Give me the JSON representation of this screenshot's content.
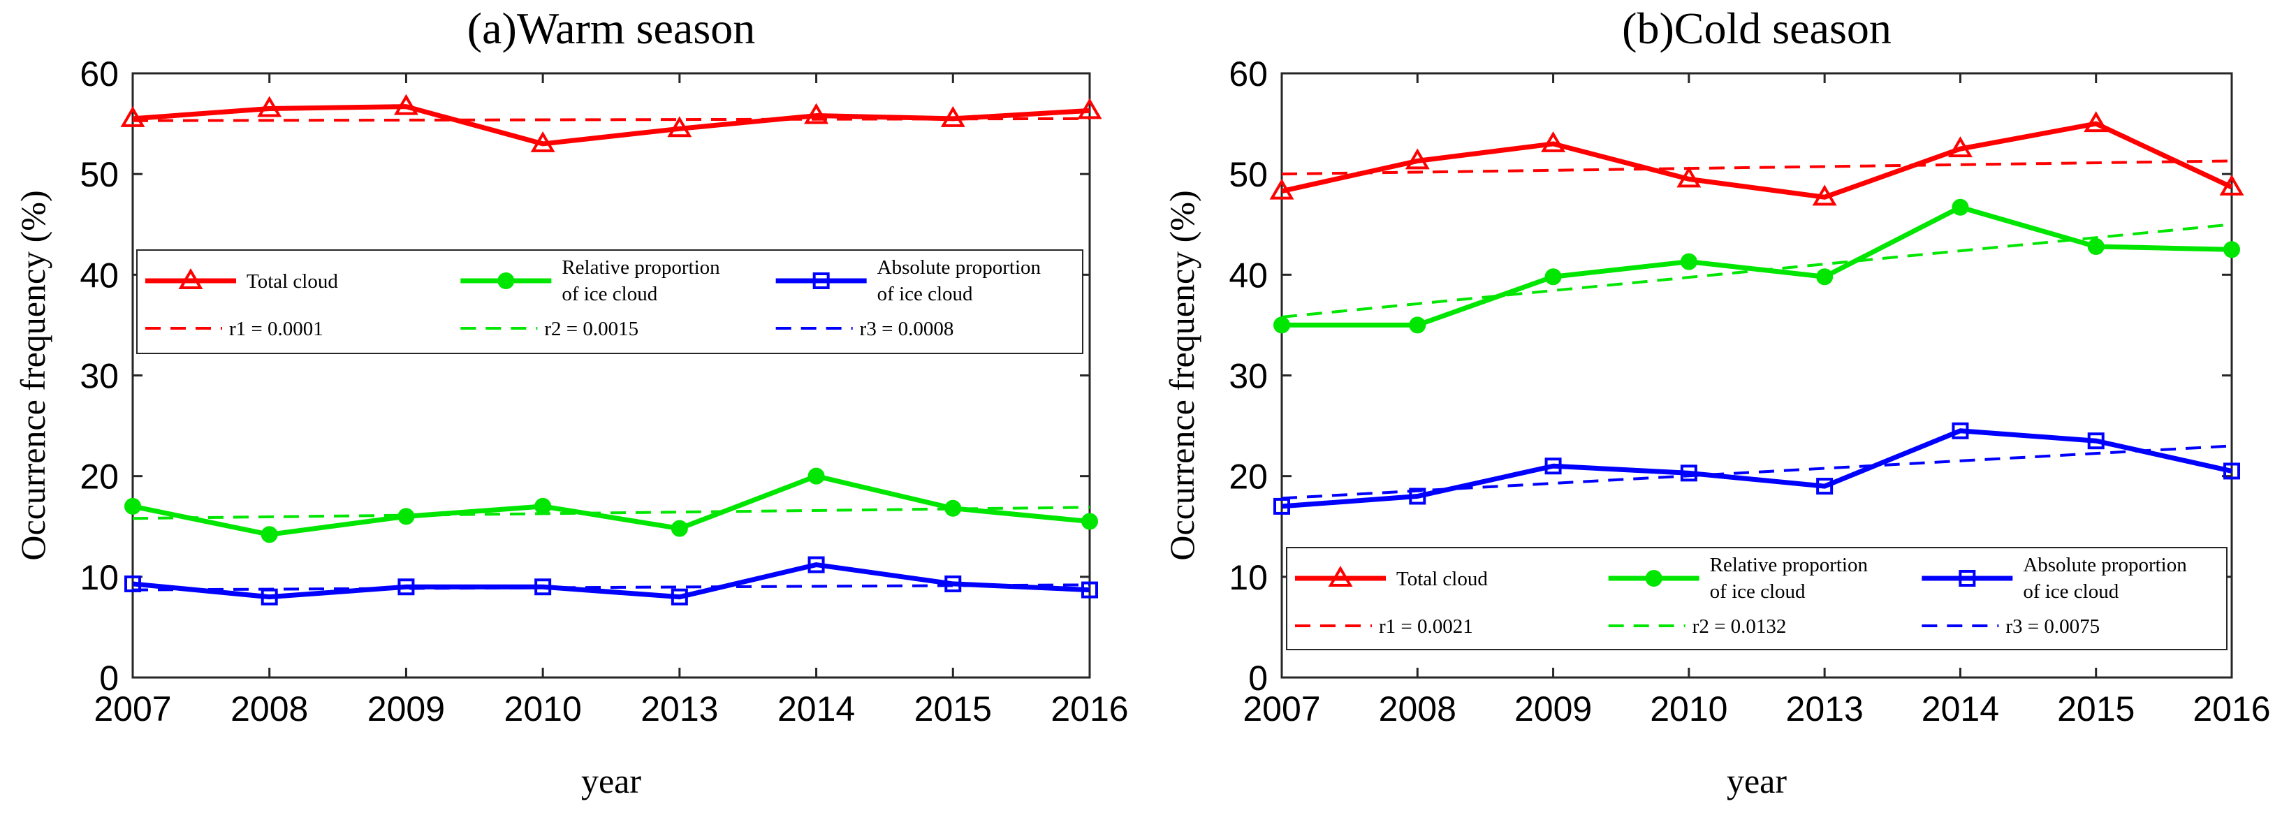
{
  "chart_data": [
    {
      "type": "line",
      "title": "(a)Warm season",
      "xlabel": "year",
      "ylabel": "Occurrence frequency (%)",
      "categories": [
        "2007",
        "2008",
        "2009",
        "2010",
        "2013",
        "2014",
        "2015",
        "2016"
      ],
      "ylim": [
        0,
        60
      ],
      "yticks": [
        "0",
        "10",
        "20",
        "30",
        "40",
        "50",
        "60"
      ],
      "series": [
        {
          "name": "Total cloud",
          "color": "#ff0000",
          "marker": "triangle",
          "values": [
            55.5,
            56.5,
            56.7,
            53.0,
            54.5,
            55.8,
            55.5,
            56.3
          ]
        },
        {
          "name": "Relative proportion of ice cloud",
          "color": "#00e600",
          "marker": "circle",
          "values": [
            17.0,
            14.2,
            16.0,
            17.0,
            14.8,
            20.0,
            16.8,
            15.5
          ]
        },
        {
          "name": "Absolute proportion of ice cloud",
          "color": "#0000ff",
          "marker": "square",
          "values": [
            9.3,
            8.0,
            9.0,
            9.0,
            8.0,
            11.2,
            9.3,
            8.7
          ]
        }
      ],
      "trends": [
        {
          "label": "r1 = 0.0001",
          "color": "#ff0000",
          "start": 55.3,
          "end": 55.5
        },
        {
          "label": "r2 = 0.0015",
          "color": "#00e600",
          "start": 15.8,
          "end": 16.9
        },
        {
          "label": "r3 = 0.0008",
          "color": "#0000ff",
          "start": 8.7,
          "end": 9.2
        }
      ],
      "legend": {
        "placement": "middle",
        "entries": [
          {
            "line1": "Total cloud",
            "line2": ""
          },
          {
            "line1": "Relative proportion",
            "line2": "of ice cloud"
          },
          {
            "line1": "Absolute  proportion",
            "line2": "of ice cloud"
          }
        ]
      }
    },
    {
      "type": "line",
      "title": "(b)Cold season",
      "xlabel": "year",
      "ylabel": "Occurrence frequency (%)",
      "categories": [
        "2007",
        "2008",
        "2009",
        "2010",
        "2013",
        "2014",
        "2015",
        "2016"
      ],
      "ylim": [
        0,
        60
      ],
      "yticks": [
        "0",
        "10",
        "20",
        "30",
        "40",
        "50",
        "60"
      ],
      "series": [
        {
          "name": "Total cloud",
          "color": "#ff0000",
          "marker": "triangle",
          "values": [
            48.3,
            51.3,
            53.0,
            49.5,
            47.7,
            52.5,
            55.0,
            48.7
          ]
        },
        {
          "name": "Relative proportion of ice cloud",
          "color": "#00e600",
          "marker": "circle",
          "values": [
            35.0,
            35.0,
            39.8,
            41.3,
            39.8,
            46.7,
            42.8,
            42.5
          ]
        },
        {
          "name": "Absolute proportion of ice cloud",
          "color": "#0000ff",
          "marker": "square",
          "values": [
            17.0,
            18.0,
            21.0,
            20.3,
            19.0,
            24.5,
            23.5,
            20.5
          ]
        }
      ],
      "trends": [
        {
          "label": "r1 = 0.0021",
          "color": "#ff0000",
          "start": 50.0,
          "end": 51.3
        },
        {
          "label": "r2 = 0.0132",
          "color": "#00e600",
          "start": 35.8,
          "end": 45.0
        },
        {
          "label": "r3 = 0.0075",
          "color": "#0000ff",
          "start": 17.8,
          "end": 23.0
        }
      ],
      "legend": {
        "placement": "bottom",
        "entries": [
          {
            "line1": "Total cloud",
            "line2": ""
          },
          {
            "line1": "Relative proportion",
            "line2": "of ice cloud"
          },
          {
            "line1": "Absolute  proportion",
            "line2": "of ice cloud"
          }
        ]
      }
    }
  ]
}
